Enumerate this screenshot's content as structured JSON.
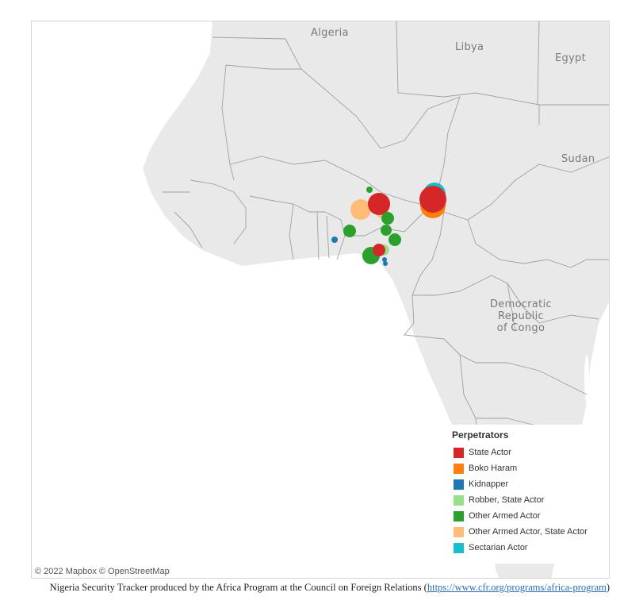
{
  "map": {
    "countries": [
      {
        "name": "Algeria"
      },
      {
        "name": "Libya"
      },
      {
        "name": "Egypt"
      },
      {
        "name": "Sudan"
      },
      {
        "name": "Democratic Republic of Congo",
        "lines": [
          "Democratic",
          "Republic",
          "of Congo"
        ]
      }
    ],
    "attribution": "© 2022 Mapbox  © OpenStreetMap",
    "colors": {
      "land": "#e9e9e9",
      "water": "#ffffff",
      "border": "#a0a0a0"
    }
  },
  "legend": {
    "title": "Perpetrators",
    "items": [
      {
        "label": "State Actor",
        "color": "#d62728"
      },
      {
        "label": "Boko Haram",
        "color": "#ff7f0e"
      },
      {
        "label": "Kidnapper",
        "color": "#1f77b4"
      },
      {
        "label": "Robber, State Actor",
        "color": "#98df8a"
      },
      {
        "label": "Other Armed Actor",
        "color": "#2ca02c"
      },
      {
        "label": "Other Armed Actor, State Actor",
        "color": "#ffbb78"
      },
      {
        "label": "Sectarian Actor",
        "color": "#17becf"
      }
    ]
  },
  "caption": {
    "text": "Nigeria Security Tracker produced by the Africa Program at the Council on Foreign Relations (",
    "link": "https://www.cfr.org/programs/africa-program",
    "closing": ")"
  }
}
